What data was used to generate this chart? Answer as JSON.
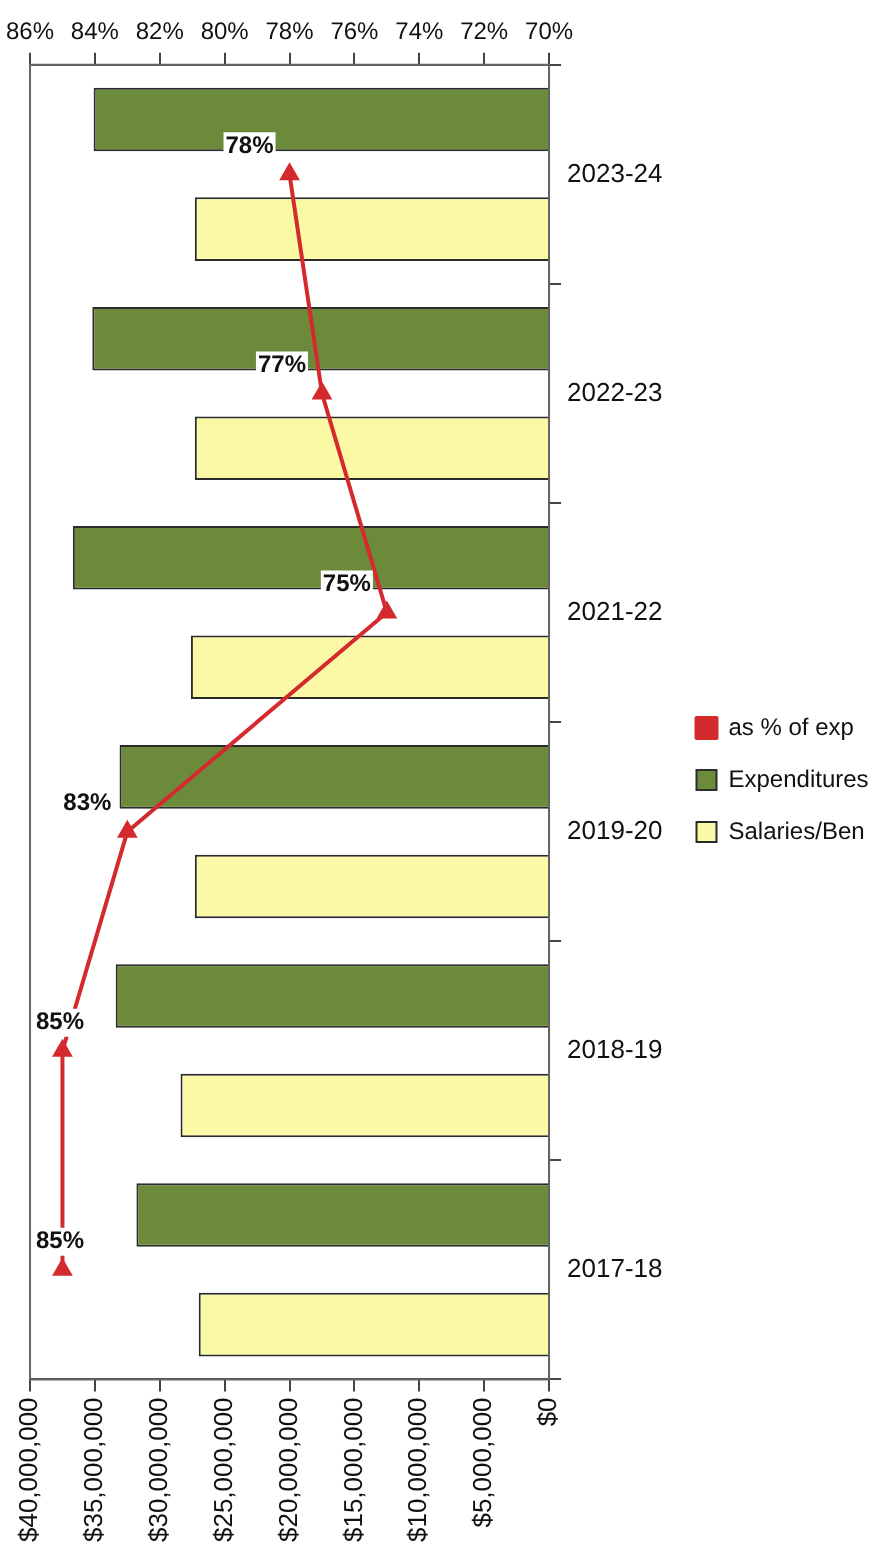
{
  "chart_data": {
    "type": "bar",
    "orientation": "horizontal",
    "categories": [
      "2023-24",
      "2022-23",
      "2021-22",
      "2019-20",
      "2018-19",
      "2017-18"
    ],
    "series": [
      {
        "name": "as % of exp",
        "type": "line",
        "axis": "x2",
        "color": "#d42a2e",
        "values": [
          78,
          77,
          75,
          83,
          85,
          85
        ],
        "value_labels": [
          "78%",
          "77%",
          "75%",
          "83%",
          "85%",
          "85%"
        ]
      },
      {
        "name": "Expenditures",
        "color": "#6b8a3a",
        "values": [
          35100000,
          35200000,
          36700000,
          33100000,
          33400000,
          31800000
        ]
      },
      {
        "name": "Salaries/Ben",
        "color": "#fbf8a6",
        "values": [
          27300000,
          27300000,
          27600000,
          27300000,
          28400000,
          27000000
        ]
      }
    ],
    "xlim": [
      40000000,
      0
    ],
    "xticks": [
      {
        "value": 40000000,
        "label": "$40,000,000"
      },
      {
        "value": 35000000,
        "label": "$35,000,000"
      },
      {
        "value": 30000000,
        "label": "$30,000,000"
      },
      {
        "value": 25000000,
        "label": "$25,000,000"
      },
      {
        "value": 20000000,
        "label": "$20,000,000"
      },
      {
        "value": 15000000,
        "label": "$15,000,000"
      },
      {
        "value": 10000000,
        "label": "$10,000,000"
      },
      {
        "value": 5000000,
        "label": "$5,000,000"
      },
      {
        "value": 0,
        "label": "$0"
      }
    ],
    "x2lim": [
      86,
      70
    ],
    "x2ticks": [
      {
        "value": 86,
        "label": "86%"
      },
      {
        "value": 84,
        "label": "84%"
      },
      {
        "value": 82,
        "label": "82%"
      },
      {
        "value": 80,
        "label": "80%"
      },
      {
        "value": 78,
        "label": "78%"
      },
      {
        "value": 76,
        "label": "76%"
      },
      {
        "value": 74,
        "label": "74%"
      },
      {
        "value": 72,
        "label": "72%"
      },
      {
        "value": 70,
        "label": "70%"
      }
    ],
    "grid": false,
    "legend": "right",
    "marker": "triangle"
  }
}
